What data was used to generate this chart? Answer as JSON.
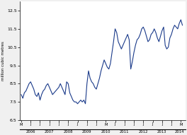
{
  "ylabel": "million cubic metres",
  "ylim": [
    6.5,
    13.0
  ],
  "yticks": [
    6.5,
    7.5,
    8.5,
    9.5,
    10.5,
    11.5,
    12.5
  ],
  "line_color": "#1a3a8a",
  "line_width": 0.8,
  "bg_color": "#f0f0f0",
  "plot_bg": "#ffffff",
  "values": [
    7.9,
    7.7,
    8.0,
    8.1,
    8.3,
    8.5,
    8.6,
    8.4,
    8.2,
    7.9,
    7.8,
    8.0,
    7.6,
    7.9,
    8.1,
    8.2,
    8.4,
    8.5,
    8.3,
    8.1,
    7.9,
    8.0,
    8.1,
    8.2,
    8.3,
    8.5,
    8.3,
    8.1,
    7.9,
    8.6,
    8.5,
    8.0,
    7.8,
    7.6,
    7.5,
    7.5,
    7.4,
    7.5,
    7.6,
    7.5,
    7.6,
    7.4,
    8.5,
    9.2,
    8.8,
    8.6,
    8.5,
    8.3,
    8.2,
    8.5,
    8.8,
    9.2,
    9.5,
    9.8,
    9.6,
    9.4,
    9.3,
    9.6,
    10.2,
    10.8,
    11.5,
    11.3,
    10.8,
    10.6,
    10.4,
    10.6,
    10.8,
    11.0,
    11.2,
    10.9,
    9.3,
    9.7,
    10.2,
    10.6,
    10.9,
    11.0,
    11.2,
    11.5,
    11.6,
    11.4,
    11.1,
    10.8,
    10.9,
    11.2,
    11.3,
    11.5,
    11.3,
    11.0,
    10.8,
    11.1,
    11.4,
    11.6,
    10.6,
    10.4,
    10.5,
    11.0,
    11.2,
    11.5,
    11.7,
    11.6,
    11.5,
    11.8,
    12.0,
    11.7
  ],
  "month_tick_positions": [
    0,
    6,
    12,
    18,
    24,
    30,
    36,
    42,
    48,
    54,
    60,
    66,
    72,
    78,
    84,
    90,
    96,
    102
  ],
  "month_tick_labels": [
    "M",
    "J",
    "J",
    "J",
    "J",
    "J",
    "J",
    "J",
    "J",
    "M",
    "J",
    "J",
    "J",
    "J",
    "J",
    "J",
    "J",
    "M"
  ],
  "year_positions": [
    6,
    18,
    30,
    42,
    54,
    66,
    78,
    90,
    101
  ],
  "year_labels": [
    "2006",
    "2007",
    "2008",
    "2009",
    "2010",
    "2011",
    "2012",
    "2013",
    "2014"
  ]
}
